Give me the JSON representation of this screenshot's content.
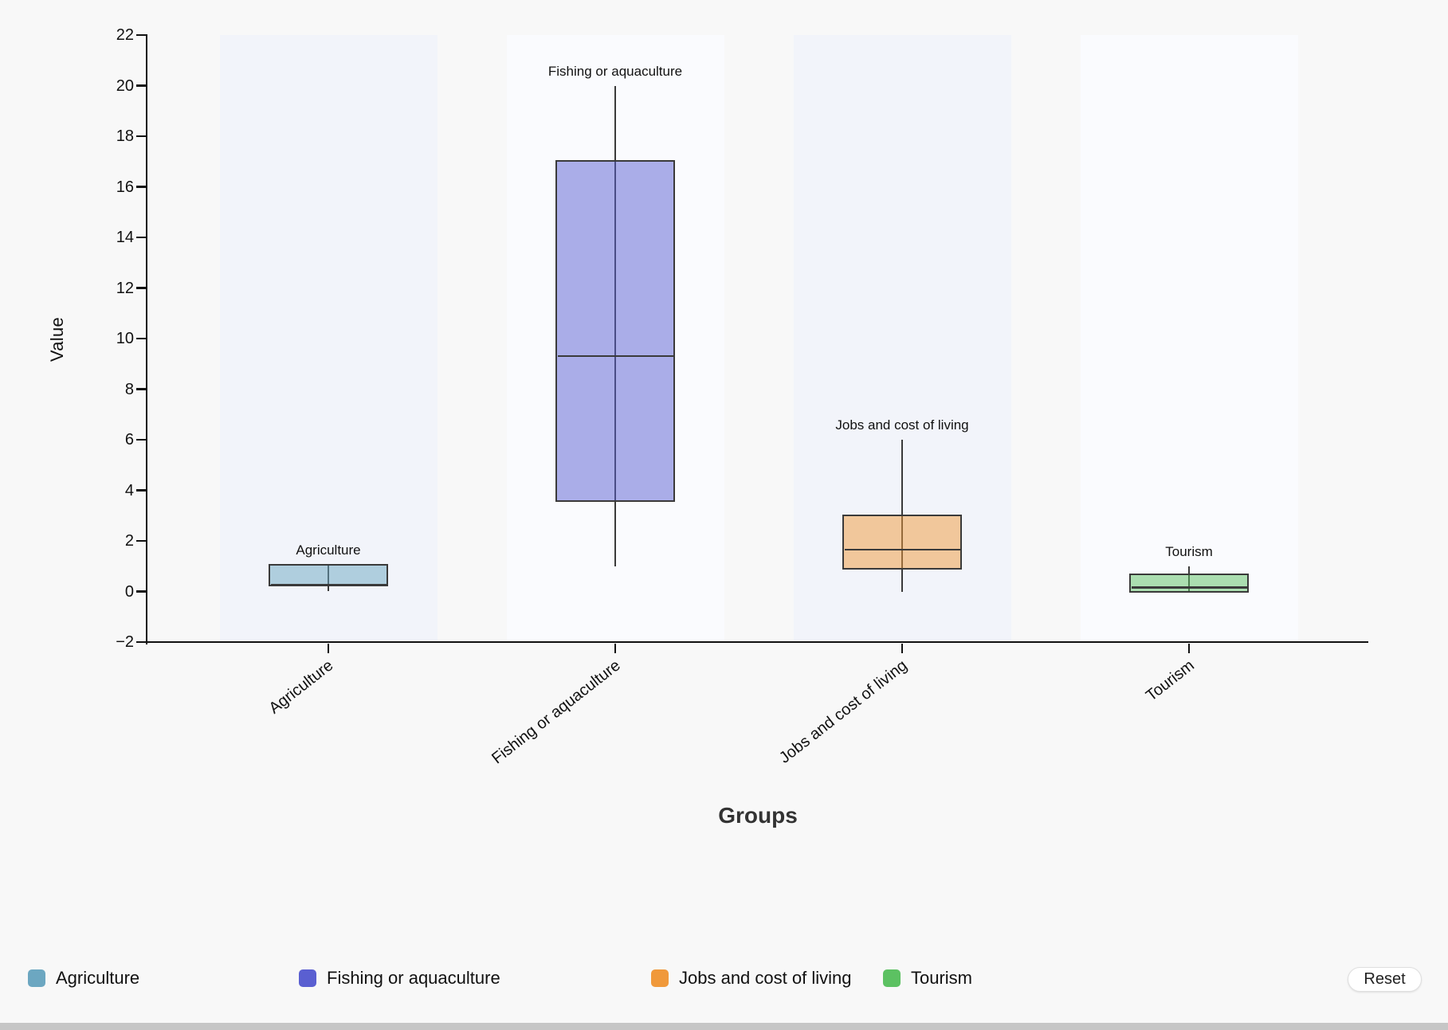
{
  "chart_data": {
    "type": "boxplot",
    "title": "",
    "xlabel": "Groups",
    "ylabel": "Value",
    "ylim": [
      -2,
      22
    ],
    "yticks": [
      -2,
      0,
      2,
      4,
      6,
      8,
      10,
      12,
      14,
      16,
      18,
      20,
      22
    ],
    "grid": false,
    "categories": [
      "Agriculture",
      "Fishing or aquaculture",
      "Jobs and cost of living",
      "Tourism"
    ],
    "series": [
      {
        "name": "Agriculture",
        "color": "#6CA7C1",
        "min": 0,
        "q1": 0.25,
        "median": 0.25,
        "q3": 1.05,
        "max": 1.05
      },
      {
        "name": "Fishing or aquaculture",
        "color": "#5A5FD1",
        "min": 1,
        "q1": 3.6,
        "median": 9.3,
        "q3": 17,
        "max": 20
      },
      {
        "name": "Jobs and cost of living",
        "color": "#F0993B",
        "min": 0,
        "q1": 0.9,
        "median": 1.65,
        "q3": 3,
        "max": 6
      },
      {
        "name": "Tourism",
        "color": "#5CC162",
        "min": 0,
        "q1": 0,
        "median": 0.15,
        "q3": 0.65,
        "max": 1
      }
    ],
    "box_annotations": [
      "Agriculture",
      "Fishing or aquaculture",
      "Jobs and cost of living",
      "Tourism"
    ],
    "band_colors": [
      "#f2f4fa",
      "#fafbfe"
    ],
    "legend_position": "bottom"
  },
  "legend": {
    "items": [
      {
        "label": "Agriculture",
        "color": "#6CA7C1"
      },
      {
        "label": "Fishing or aquaculture",
        "color": "#5A5FD1"
      },
      {
        "label": "Jobs and cost of living",
        "color": "#F0993B"
      },
      {
        "label": "Tourism",
        "color": "#5CC162"
      }
    ]
  },
  "controls": {
    "reset_label": "Reset"
  }
}
